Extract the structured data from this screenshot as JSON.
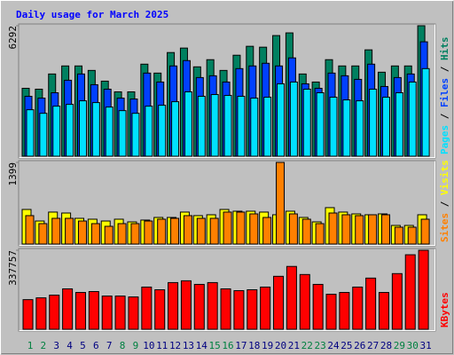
{
  "chart_data": {
    "type": "bar",
    "title": "Daily usage for March 2025",
    "categories": [
      "1",
      "2",
      "3",
      "4",
      "5",
      "6",
      "7",
      "8",
      "9",
      "10",
      "11",
      "12",
      "13",
      "14",
      "15",
      "16",
      "17",
      "18",
      "19",
      "20",
      "21",
      "22",
      "23",
      "24",
      "25",
      "26",
      "27",
      "28",
      "29",
      "30",
      "31"
    ],
    "category_colors": [
      "#008040",
      "#008040",
      "#000080",
      "#000080",
      "#000080",
      "#000080",
      "#000080",
      "#008040",
      "#008040",
      "#000080",
      "#000080",
      "#000080",
      "#000080",
      "#000080",
      "#008040",
      "#008040",
      "#000080",
      "#000080",
      "#000080",
      "#000080",
      "#000080",
      "#008040",
      "#008040",
      "#000080",
      "#000080",
      "#000080",
      "#000080",
      "#000080",
      "#008040",
      "#008040",
      "#000080"
    ],
    "panels": [
      {
        "ylim": [
          0,
          6292
        ],
        "yticks": [
          6292
        ],
        "series": [
          {
            "name": "Hits",
            "color": "#008060",
            "values": [
              3275,
              3232,
              3965,
              4353,
              4353,
              4137,
              3620,
              3103,
              3103,
              4439,
              4008,
              4999,
              5215,
              4310,
              4655,
              4137,
              4870,
              5301,
              5258,
              5818,
              5947,
              3965,
              3577,
              4655,
              4353,
              4353,
              5129,
              4051,
              4353,
              4353,
              6292
            ]
          },
          {
            "name": "Files",
            "color": "#0040ff",
            "values": [
              2888,
              2801,
              3060,
              3663,
              3965,
              3448,
              3232,
              2801,
              2758,
              4008,
              3577,
              4353,
              4611,
              3793,
              3879,
              3577,
              4224,
              4353,
              4482,
              4353,
              4741,
              3491,
              3275,
              4008,
              3879,
              3706,
              4439,
              3362,
              3793,
              3965,
              5517
            ]
          },
          {
            "name": "Pages",
            "color": "#00e0ff",
            "values": [
              2241,
              2069,
              2413,
              2500,
              2672,
              2586,
              2370,
              2198,
              2069,
              2413,
              2457,
              2629,
              3103,
              2888,
              2974,
              2931,
              2888,
              2801,
              2845,
              3491,
              3577,
              3232,
              3060,
              2845,
              2715,
              2672,
              3232,
              2845,
              3060,
              3577,
              4224
            ]
          }
        ]
      },
      {
        "ylim": [
          0,
          1399
        ],
        "yticks": [
          1399
        ],
        "series": [
          {
            "name": "Visits",
            "color": "#ffff00",
            "values": [
              593,
              395,
              548,
              532,
              441,
              426,
              395,
              426,
              380,
              411,
              456,
              456,
              548,
              487,
              502,
              593,
              563,
              563,
              548,
              502,
              563,
              456,
              380,
              624,
              548,
              517,
              502,
              517,
              319,
              319,
              502
            ]
          },
          {
            "name": "Sites",
            "color": "#ff8000",
            "values": [
              487,
              350,
              441,
              441,
              395,
              350,
              304,
              350,
              350,
              395,
              426,
              441,
              487,
              441,
              441,
              548,
              548,
              517,
              456,
              1399,
              517,
              426,
              350,
              532,
              502,
              487,
              502,
              502,
              289,
              289,
              426
            ]
          }
        ]
      },
      {
        "ylim": [
          0,
          337757
        ],
        "yticks": [
          337757
        ],
        "series": [
          {
            "name": "KBytes",
            "color": "#ff0000",
            "values": [
              126654,
              134330,
              145844,
              172710,
              157358,
              161196,
              142006,
              142006,
              138168,
              180386,
              168872,
              199576,
              207252,
              191900,
              199576,
              172710,
              165034,
              168872,
              180386,
              226442,
              268660,
              234118,
              191900,
              149682,
              157358,
              180386,
              218766,
              157358,
              237956,
              318554,
              337757
            ]
          }
        ]
      }
    ]
  }
}
